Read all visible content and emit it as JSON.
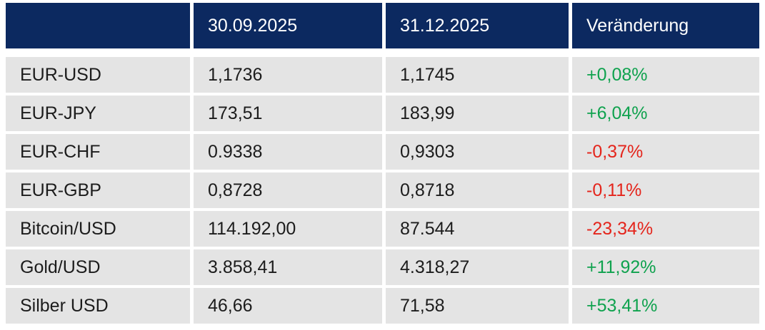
{
  "colors": {
    "header_bg": "#0c2960",
    "header_text": "#ffffff",
    "row_bg": "#e4e4e4",
    "text": "#1c1c1c",
    "positive": "#0fa24e",
    "negative": "#e4251c",
    "page_bg": "#ffffff"
  },
  "chart_data": {
    "type": "table",
    "columns": [
      "",
      "30.09.2025",
      "31.12.2025",
      "Veränderung"
    ],
    "rows": [
      {
        "label": "EUR-USD",
        "val_start": "1,1736",
        "val_end": "1,1745",
        "change": "+0,08%",
        "trend": "positive"
      },
      {
        "label": "EUR-JPY",
        "val_start": "173,51",
        "val_end": "183,99",
        "change": "+6,04%",
        "trend": "positive"
      },
      {
        "label": "EUR-CHF",
        "val_start": "0.9338",
        "val_end": "0,9303",
        "change": "-0,37%",
        "trend": "negative"
      },
      {
        "label": "EUR-GBP",
        "val_start": "0,8728",
        "val_end": "0,8718",
        "change": "-0,11%",
        "trend": "negative"
      },
      {
        "label": "Bitcoin/USD",
        "val_start": "114.192,00",
        "val_end": "87.544",
        "change": "-23,34%",
        "trend": "negative"
      },
      {
        "label": "Gold/USD",
        "val_start": "3.858,41",
        "val_end": "4.318,27",
        "change": "+11,92%",
        "trend": "positive"
      },
      {
        "label": "Silber USD",
        "val_start": "46,66",
        "val_end": "71,58",
        "change": "+53,41%",
        "trend": "positive"
      }
    ]
  }
}
